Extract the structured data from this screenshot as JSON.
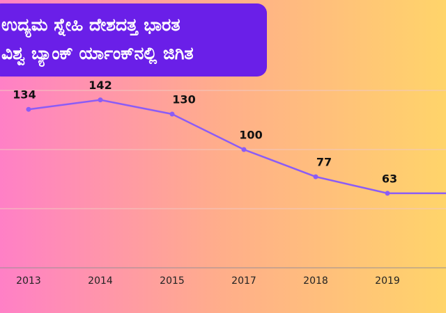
{
  "chart_data": {
    "type": "line",
    "title": [
      "ಉದ್ಯಮ ಸ್ನೇಹಿ ದೇಶದತ್ತ ಭಾರತ",
      "ವಿಶ್ವ ಬ್ಯಾಂಕ್ ರ್ಯಾಂಕ್‌ನಲ್ಲಿ ಜಿಗಿತ"
    ],
    "categories": [
      "2013",
      "2014",
      "2015",
      "2017",
      "2018",
      "2019",
      null
    ],
    "values": [
      134,
      142,
      130,
      100,
      77,
      63,
      63
    ],
    "color": "#8b5cf6",
    "ylim": [
      0,
      150
    ],
    "yticks": [
      0,
      50,
      100,
      150
    ],
    "ytick_labels_visible": false,
    "grid": true
  }
}
